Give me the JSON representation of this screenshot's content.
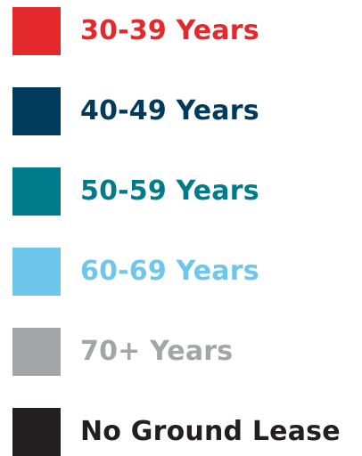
{
  "legend": {
    "items": [
      {
        "label": "30-39 Years",
        "color": "#e3292b"
      },
      {
        "label": "40-49 Years",
        "color": "#003a5c"
      },
      {
        "label": "50-59 Years",
        "color": "#007b8a"
      },
      {
        "label": "60-69 Years",
        "color": "#6ec6ec"
      },
      {
        "label": "70+ Years",
        "color": "#a3a5a7"
      },
      {
        "label": "No Ground Lease",
        "color": "#231f20"
      }
    ]
  }
}
